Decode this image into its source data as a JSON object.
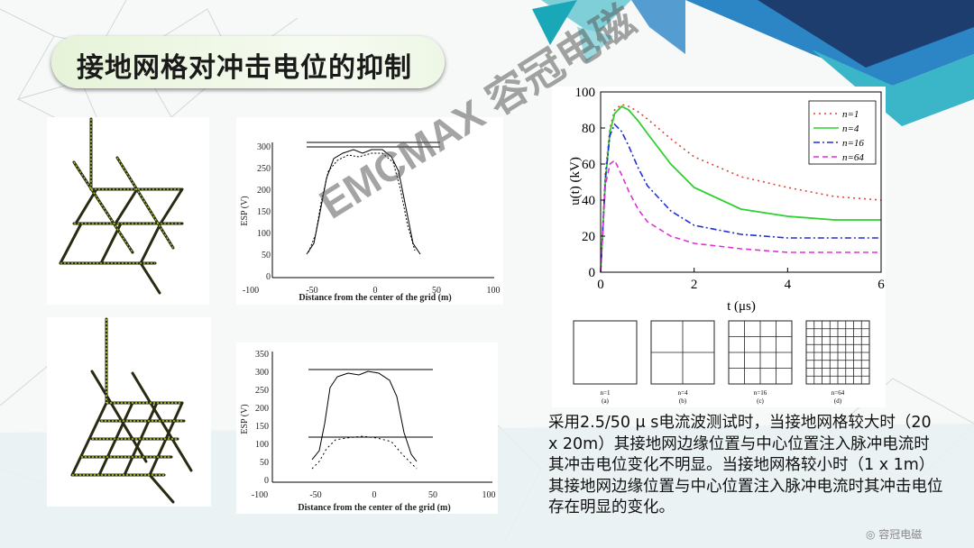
{
  "slide": {
    "title": "接地网格对冲击电位的抑制",
    "description": "采用2.5/50 μ s电流波测试时，当接地网格较大时（20 x 20m）其接地网边缘位置与中心位置注入脉冲电流时其冲击电位变化不明显。当接地网格较小时（1 x 1m）其接地网边缘位置与中心位置注入脉冲电流时其冲击电位存在明显的变化。",
    "watermark": "EMCMAX  容冠电磁",
    "corner_badge": "容冠电磁"
  },
  "esp_plot_top": {
    "ylabel": "ESP (V)",
    "xlabel": "Distance from the center of the grid (m)",
    "yticks": [
      "300",
      "250",
      "200",
      "150",
      "100",
      "50",
      "0"
    ],
    "xticks": [
      "-100",
      "-50",
      "0",
      "50",
      "100"
    ]
  },
  "esp_plot_bottom": {
    "ylabel": "ESP (V)",
    "xlabel": "Distance from the center of the grid (m)",
    "yticks": [
      "350",
      "300",
      "250",
      "200",
      "150",
      "100",
      "50",
      "0"
    ],
    "xticks": [
      "-100",
      "-50",
      "0",
      "50",
      "100"
    ]
  },
  "chart_data": {
    "type": "line",
    "ylabel": "u(t) (kV)",
    "xlabel": "t (μs)",
    "xlim": [
      0,
      6
    ],
    "ylim": [
      0,
      100
    ],
    "xticks": [
      "0",
      "2",
      "4",
      "6"
    ],
    "yticks": [
      "100",
      "80",
      "60",
      "40",
      "20",
      "0"
    ],
    "legend_position": "top-right",
    "series": [
      {
        "name": "n=1",
        "color": "#e0413a",
        "dash": "dotted",
        "x": [
          0,
          0.1,
          0.2,
          0.3,
          0.45,
          0.6,
          0.8,
          1.0,
          1.5,
          2,
          3,
          4,
          5,
          6
        ],
        "y": [
          0,
          55,
          80,
          90,
          93,
          92,
          89,
          85,
          74,
          64,
          53,
          47,
          42,
          40
        ]
      },
      {
        "name": "n=4",
        "color": "#2fd02f",
        "dash": "solid",
        "x": [
          0,
          0.1,
          0.2,
          0.3,
          0.45,
          0.6,
          0.8,
          1.0,
          1.5,
          2,
          3,
          4,
          5,
          6
        ],
        "y": [
          0,
          50,
          78,
          88,
          92,
          90,
          84,
          77,
          60,
          47,
          35,
          31,
          29,
          29
        ]
      },
      {
        "name": "n=16",
        "color": "#1f2fd8",
        "dash": "dashdot",
        "x": [
          0,
          0.1,
          0.2,
          0.3,
          0.45,
          0.6,
          0.8,
          1.0,
          1.5,
          2,
          3,
          4,
          5,
          6
        ],
        "y": [
          0,
          52,
          76,
          82,
          78,
          70,
          58,
          48,
          34,
          26,
          21,
          19,
          19,
          19
        ]
      },
      {
        "name": "n=64",
        "color": "#e030d8",
        "dash": "dashed",
        "x": [
          0,
          0.1,
          0.2,
          0.3,
          0.45,
          0.6,
          0.8,
          1.0,
          1.5,
          2,
          3,
          4,
          5,
          6
        ],
        "y": [
          0,
          48,
          60,
          62,
          54,
          45,
          35,
          28,
          20,
          16,
          13,
          11,
          11,
          11
        ]
      }
    ]
  },
  "grid_panels": [
    {
      "label": "n=1",
      "sub": "(a)",
      "n": 1
    },
    {
      "label": "n=4",
      "sub": "(b)",
      "n": 2
    },
    {
      "label": "n=16",
      "sub": "(c)",
      "n": 4
    },
    {
      "label": "n=64",
      "sub": "(d)",
      "n": 8
    }
  ],
  "colors": {
    "title_bg": "#e6f3d8",
    "accent_teal": "#1aa7b8",
    "accent_blue": "#1c3d6e"
  }
}
